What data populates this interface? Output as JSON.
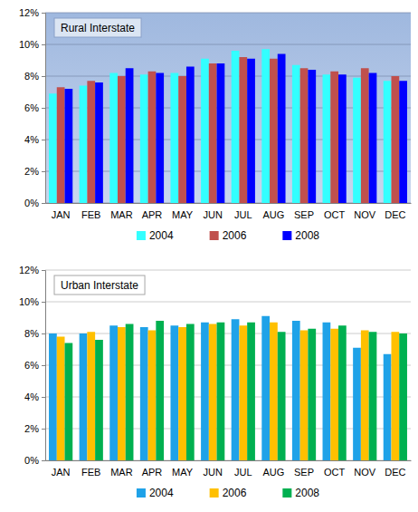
{
  "chart_data": [
    {
      "type": "bar",
      "title": "Rural Interstate",
      "categories": [
        "JAN",
        "FEB",
        "MAR",
        "APR",
        "MAY",
        "JUN",
        "JUL",
        "AUG",
        "SEP",
        "OCT",
        "NOV",
        "DEC"
      ],
      "series": [
        {
          "name": "2004",
          "color": "#33ffff",
          "values": [
            6.9,
            7.4,
            8.2,
            8.1,
            8.2,
            9.1,
            9.6,
            9.7,
            8.7,
            8.1,
            7.9,
            7.7
          ]
        },
        {
          "name": "2006",
          "color": "#c0504d",
          "values": [
            7.3,
            7.7,
            8.0,
            8.3,
            8.0,
            8.8,
            9.2,
            9.1,
            8.5,
            8.3,
            8.5,
            8.0
          ]
        },
        {
          "name": "2008",
          "color": "#0000ff",
          "values": [
            7.2,
            7.6,
            8.5,
            8.2,
            8.6,
            8.8,
            9.1,
            9.4,
            8.4,
            8.1,
            8.2,
            7.7
          ]
        }
      ],
      "ylim": [
        0,
        12
      ],
      "yticks": [
        {
          "value": 0,
          "label": "0%"
        },
        {
          "value": 2,
          "label": "2%"
        },
        {
          "value": 4,
          "label": "4%"
        },
        {
          "value": 6,
          "label": "6%"
        },
        {
          "value": 8,
          "label": "8%"
        },
        {
          "value": 10,
          "label": "10%"
        },
        {
          "value": 12,
          "label": "12%"
        }
      ],
      "grid": true,
      "legend": "bottom"
    },
    {
      "type": "bar",
      "title": "Urban Interstate",
      "categories": [
        "JAN",
        "FEB",
        "MAR",
        "APR",
        "MAY",
        "JUN",
        "JUL",
        "AUG",
        "SEP",
        "OCT",
        "NOV",
        "DEC"
      ],
      "series": [
        {
          "name": "2004",
          "color": "#1fa2e8",
          "values": [
            8.0,
            8.0,
            8.5,
            8.4,
            8.5,
            8.7,
            8.9,
            9.1,
            8.8,
            8.7,
            7.1,
            6.7
          ]
        },
        {
          "name": "2006",
          "color": "#ffc000",
          "values": [
            7.8,
            8.1,
            8.4,
            8.2,
            8.4,
            8.6,
            8.5,
            8.7,
            8.2,
            8.3,
            8.2,
            8.1
          ]
        },
        {
          "name": "2008",
          "color": "#00b050",
          "values": [
            7.4,
            7.6,
            8.6,
            8.8,
            8.6,
            8.7,
            8.7,
            8.1,
            8.3,
            8.5,
            8.1,
            8.0
          ]
        }
      ],
      "ylim": [
        0,
        12
      ],
      "yticks": [
        {
          "value": 0,
          "label": "0%"
        },
        {
          "value": 2,
          "label": "2%"
        },
        {
          "value": 4,
          "label": "4%"
        },
        {
          "value": 6,
          "label": "6%"
        },
        {
          "value": 8,
          "label": "8%"
        },
        {
          "value": 10,
          "label": "10%"
        },
        {
          "value": 12,
          "label": "12%"
        }
      ],
      "grid": true,
      "legend": "bottom"
    }
  ]
}
